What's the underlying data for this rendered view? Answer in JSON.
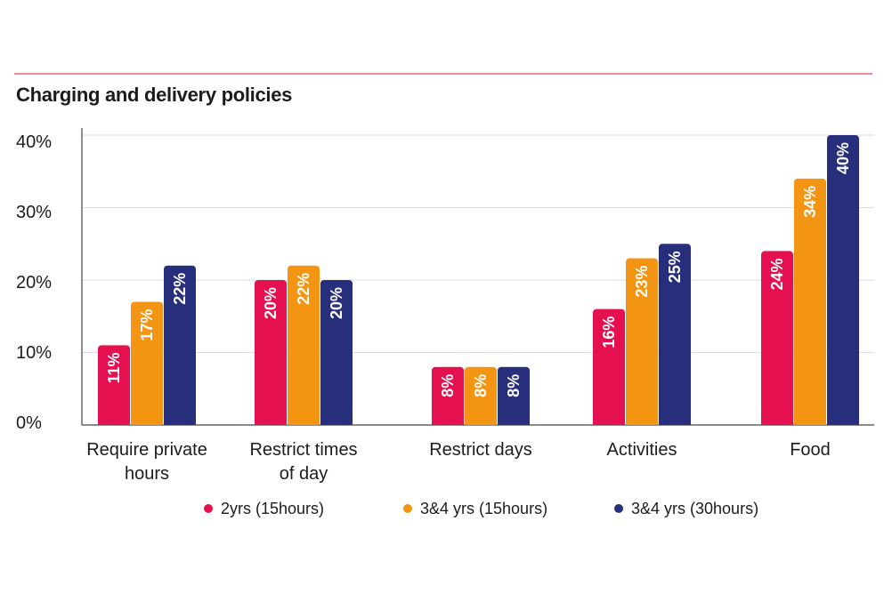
{
  "chart_data": {
    "type": "bar",
    "title": "Charging and delivery policies",
    "xlabel": "",
    "ylabel": "",
    "ylim": [
      0,
      40
    ],
    "yticks": [
      "40%",
      "30%",
      "20%",
      "10%",
      "0%"
    ],
    "grid": true,
    "legend_position": "bottom",
    "categories": [
      [
        "Require private",
        "hours"
      ],
      [
        "Restrict times",
        "of day"
      ],
      [
        "Restrict days"
      ],
      [
        "Activities"
      ],
      [
        "Food"
      ]
    ],
    "series": [
      {
        "name": "2yrs (15hours)",
        "color": "#e4104f",
        "values": [
          11,
          20,
          8,
          16,
          24
        ],
        "labels": [
          "11%",
          "20%",
          "8%",
          "16%",
          "24%"
        ]
      },
      {
        "name": "3&4 yrs (15hours)",
        "color": "#f39512",
        "values": [
          17,
          22,
          8,
          23,
          34
        ],
        "labels": [
          "17%",
          "22%",
          "8%",
          "23%",
          "34%"
        ]
      },
      {
        "name": "3&4 yrs (30hours)",
        "color": "#272e7c",
        "values": [
          22,
          20,
          8,
          25,
          40
        ],
        "labels": [
          "22%",
          "20%",
          "8%",
          "25%",
          "40%"
        ]
      }
    ]
  }
}
